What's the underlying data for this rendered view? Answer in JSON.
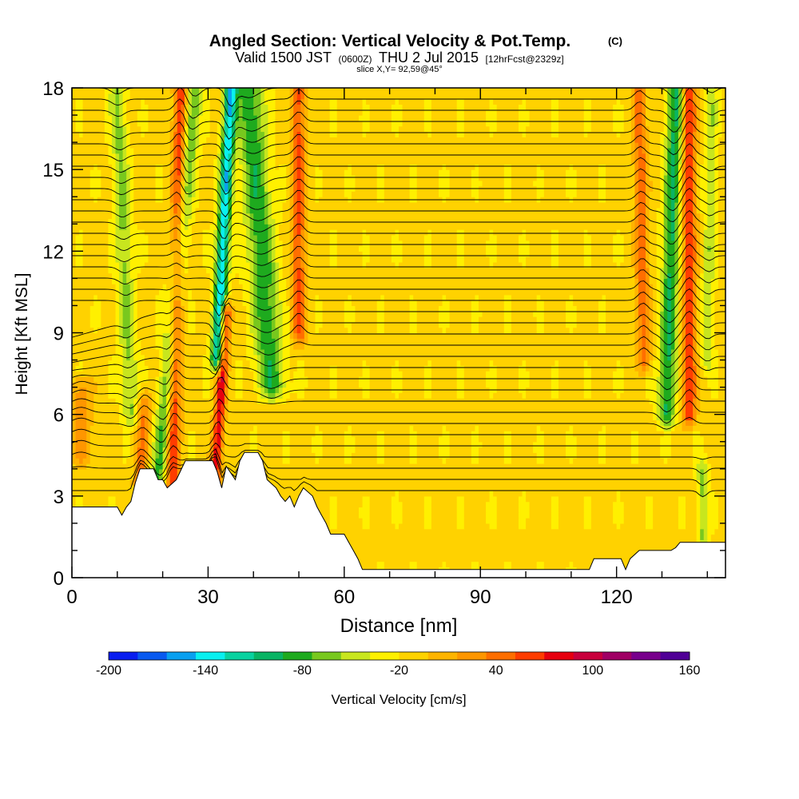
{
  "chart_data": {
    "type": "heatmap",
    "title": {
      "main": "Angled Section: Vertical Velocity & Pot.Temp.",
      "copyright": "(C)",
      "line2_prefix": "Valid 1500 JST",
      "line2_small": "(0600Z)",
      "line2_date": "THU 2 Jul 2015",
      "line2_fcst": "[12hrFcst@2329z]",
      "line3": "slice X,Y= 92,59@45°"
    },
    "xlabel": "Distance [nm]",
    "ylabel": "Height [Kft MSL]",
    "xlim": [
      0,
      144
    ],
    "ylim": [
      0,
      18
    ],
    "x_ticks": [
      "0",
      "30",
      "60",
      "90",
      "120"
    ],
    "x_tick_values": [
      0,
      30,
      60,
      90,
      120
    ],
    "y_ticks": [
      "0",
      "3",
      "6",
      "9",
      "12",
      "15",
      "18"
    ],
    "y_tick_values": [
      0,
      3,
      6,
      9,
      12,
      15,
      18
    ],
    "colorbar": {
      "label": "Vertical Velocity [cm/s]",
      "tick_labels": [
        "-200",
        "-140",
        "-80",
        "-20",
        "40",
        "100",
        "160"
      ],
      "tick_values": [
        -200,
        -140,
        -80,
        -20,
        40,
        100,
        160
      ],
      "min": -200,
      "max": 160,
      "step": 20,
      "colors": [
        "#0a1ef0",
        "#0a5af0",
        "#0aa0f0",
        "#0af0f0",
        "#0ad2a0",
        "#0ab464",
        "#1eaa1e",
        "#78c81e",
        "#c8e61e",
        "#fff000",
        "#ffd200",
        "#ffb400",
        "#ff9600",
        "#ff6e00",
        "#ff3c00",
        "#e6000f",
        "#c8003c",
        "#a00064",
        "#78008c",
        "#500096"
      ]
    },
    "background_velocity": 5,
    "updraft_bands": [
      {
        "x_bottom": 22,
        "x_top": 24,
        "width": 1.5,
        "peak": 100,
        "y_from": 2.5,
        "y_to": 18
      },
      {
        "x_bottom": 31.5,
        "x_top": 34,
        "width": 1.2,
        "peak": 110,
        "y_from": 3.5,
        "y_to": 9.8
      },
      {
        "x_bottom": 50,
        "x_top": 50,
        "width": 1.5,
        "peak": 80,
        "y_from": 9,
        "y_to": 18
      },
      {
        "x_bottom": 15,
        "x_top": 16,
        "width": 1.5,
        "peak": 60,
        "y_from": 3.5,
        "y_to": 6.5
      },
      {
        "x_bottom": 136,
        "x_top": 136,
        "width": 1.5,
        "peak": 95,
        "y_from": 6,
        "y_to": 18
      },
      {
        "x_bottom": 126,
        "x_top": 125,
        "width": 1.5,
        "peak": 70,
        "y_from": 8,
        "y_to": 18
      },
      {
        "x_bottom": 2,
        "x_top": 2,
        "width": 2.5,
        "peak": 45,
        "y_from": 4.5,
        "y_to": 7
      }
    ],
    "downdraft_bands": [
      {
        "x_bottom": 32,
        "x_top": 35,
        "width": 1.4,
        "peak": -140,
        "y_from": 8,
        "y_to": 18
      },
      {
        "x_bottom": 44,
        "x_top": 39,
        "width": 3,
        "peak": -80,
        "y_from": 7,
        "y_to": 18
      },
      {
        "x_bottom": 19,
        "x_top": 27,
        "width": 1.8,
        "peak": -70,
        "y_from": 3.5,
        "y_to": 18
      },
      {
        "x_bottom": 131,
        "x_top": 133,
        "width": 1.8,
        "peak": -90,
        "y_from": 6,
        "y_to": 18
      },
      {
        "x_bottom": 13,
        "x_top": 10,
        "width": 1.8,
        "peak": -50,
        "y_from": 6,
        "y_to": 18
      },
      {
        "x_bottom": 140,
        "x_top": 141,
        "width": 1.3,
        "peak": -40,
        "y_from": 8,
        "y_to": 18
      },
      {
        "x_bottom": 139,
        "x_top": 139,
        "width": 1.2,
        "peak": -50,
        "y_from": 1.5,
        "y_to": 4
      }
    ],
    "terrain_profile": [
      [
        0,
        2.6
      ],
      [
        10,
        2.6
      ],
      [
        11,
        2.3
      ],
      [
        12,
        2.6
      ],
      [
        13,
        2.8
      ],
      [
        14,
        3.5
      ],
      [
        15,
        4.0
      ],
      [
        18,
        4.0
      ],
      [
        19,
        3.6
      ],
      [
        20,
        3.6
      ],
      [
        21,
        3.3
      ],
      [
        23,
        3.6
      ],
      [
        25,
        4.3
      ],
      [
        31,
        4.3
      ],
      [
        32,
        3.9
      ],
      [
        33,
        3.3
      ],
      [
        34,
        4.1
      ],
      [
        36,
        3.6
      ],
      [
        37,
        4.3
      ],
      [
        38,
        4.6
      ],
      [
        41,
        4.6
      ],
      [
        42,
        4.3
      ],
      [
        43,
        3.6
      ],
      [
        45,
        3.3
      ],
      [
        46,
        3.0
      ],
      [
        47,
        2.8
      ],
      [
        48,
        3.0
      ],
      [
        49,
        2.6
      ],
      [
        50,
        3.0
      ],
      [
        51,
        3.3
      ],
      [
        53,
        3.0
      ],
      [
        54,
        2.6
      ],
      [
        55,
        2.3
      ],
      [
        56,
        2.0
      ],
      [
        57,
        1.6
      ],
      [
        60,
        1.6
      ],
      [
        61,
        1.3
      ],
      [
        62,
        1.0
      ],
      [
        63,
        0.7
      ],
      [
        64,
        0.3
      ],
      [
        114,
        0.3
      ],
      [
        115,
        0.7
      ],
      [
        121,
        0.7
      ],
      [
        122,
        0.3
      ],
      [
        123,
        0.7
      ],
      [
        125,
        1.0
      ],
      [
        132,
        1.0
      ],
      [
        133,
        1.1
      ],
      [
        134,
        1.3
      ],
      [
        140,
        1.3
      ],
      [
        144,
        1.3
      ]
    ],
    "theta_contours": {
      "count": 37,
      "min_spacing_kft": 0.12,
      "base_spacing_kft": 0.4,
      "first_level_kft": 3.2,
      "top_level_kft": 18
    }
  }
}
